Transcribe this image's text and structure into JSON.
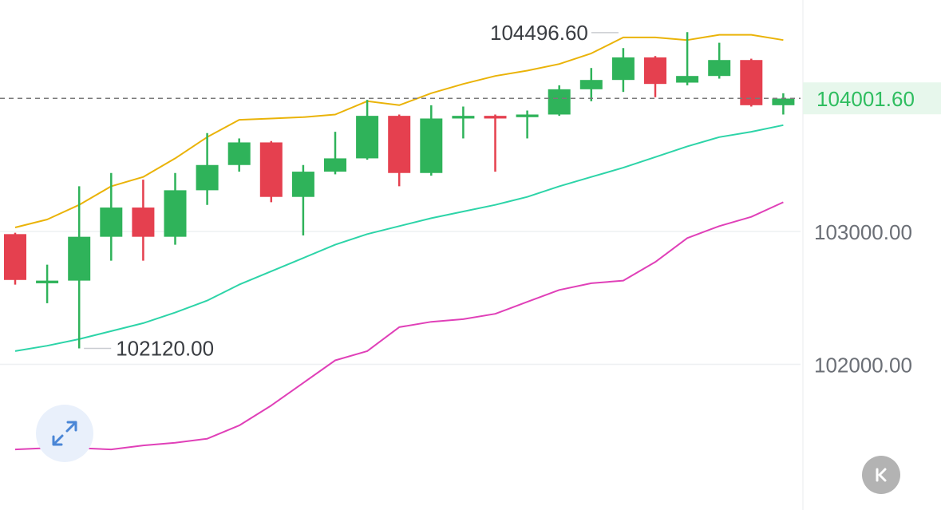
{
  "chart_data": {
    "type": "candlestick",
    "y_axis_labels": [
      "103000.00",
      "102000.00"
    ],
    "y_axis_values": [
      103000,
      102000
    ],
    "last_price": 104001.6,
    "last_price_label": "104001.60",
    "high_annotation": {
      "label": "104496.60",
      "value": 104496.6,
      "candle_index": 19
    },
    "low_annotation": {
      "label": "102120.00",
      "value": 102120.0,
      "candle_index": 2
    },
    "colors": {
      "up": "#2fb35a",
      "down": "#e5404f",
      "upper_band": "#eab308",
      "middle_band": "#2dd4a8",
      "lower_band": "#e040b8",
      "last_price_line": "#7a7a7a",
      "last_price_label_bg": "#e7f7ec"
    },
    "candles": [
      {
        "o": 102980,
        "h": 102990,
        "c": 102635,
        "l": 102600
      },
      {
        "o": 102610,
        "h": 102750,
        "c": 102630,
        "l": 102460
      },
      {
        "o": 102630,
        "h": 103340,
        "c": 102960,
        "l": 102120
      },
      {
        "o": 102960,
        "h": 103440,
        "c": 103180,
        "l": 102780
      },
      {
        "o": 103180,
        "h": 103390,
        "c": 102960,
        "l": 102780
      },
      {
        "o": 102960,
        "h": 103440,
        "c": 103310,
        "l": 102900
      },
      {
        "o": 103310,
        "h": 103740,
        "c": 103500,
        "l": 103200
      },
      {
        "o": 103500,
        "h": 103700,
        "c": 103670,
        "l": 103450
      },
      {
        "o": 103670,
        "h": 103680,
        "c": 103260,
        "l": 103220
      },
      {
        "o": 103260,
        "h": 103500,
        "c": 103450,
        "l": 102970
      },
      {
        "o": 103450,
        "h": 103750,
        "c": 103550,
        "l": 103430
      },
      {
        "o": 103550,
        "h": 103990,
        "c": 103870,
        "l": 103540
      },
      {
        "o": 103870,
        "h": 103880,
        "c": 103440,
        "l": 103340
      },
      {
        "o": 103440,
        "h": 103950,
        "c": 103850,
        "l": 103420
      },
      {
        "o": 103850,
        "h": 103940,
        "c": 103870,
        "l": 103700
      },
      {
        "o": 103870,
        "h": 103880,
        "c": 103850,
        "l": 103450
      },
      {
        "o": 103860,
        "h": 103910,
        "c": 103880,
        "l": 103700
      },
      {
        "o": 103880,
        "h": 104100,
        "c": 104070,
        "l": 103870
      },
      {
        "o": 104070,
        "h": 104230,
        "c": 104140,
        "l": 103980
      },
      {
        "o": 104140,
        "h": 104380,
        "c": 104310,
        "l": 104050
      },
      {
        "o": 104310,
        "h": 104320,
        "c": 104110,
        "l": 104010
      },
      {
        "o": 104120,
        "h": 104500,
        "c": 104170,
        "l": 104100
      },
      {
        "o": 104170,
        "h": 104420,
        "c": 104290,
        "l": 104150
      },
      {
        "o": 104290,
        "h": 104300,
        "c": 103950,
        "l": 103940
      },
      {
        "o": 103950,
        "h": 104040,
        "c": 104000,
        "l": 103880
      }
    ],
    "upper_band": [
      103030,
      103090,
      103200,
      103340,
      103410,
      103550,
      103710,
      103840,
      103850,
      103860,
      103880,
      103980,
      103950,
      104040,
      104110,
      104170,
      104210,
      104260,
      104340,
      104460,
      104460,
      104440,
      104480,
      104480,
      104440
    ],
    "middle_band": [
      102100,
      102140,
      102190,
      102250,
      102310,
      102390,
      102480,
      102600,
      102700,
      102800,
      102900,
      102980,
      103040,
      103100,
      103150,
      103200,
      103260,
      103340,
      103410,
      103480,
      103560,
      103640,
      103710,
      103750,
      103800
    ],
    "lower_band": [
      101360,
      101370,
      101370,
      101360,
      101390,
      101410,
      101440,
      101540,
      101690,
      101860,
      102030,
      102100,
      102280,
      102320,
      102340,
      102380,
      102470,
      102560,
      102610,
      102630,
      102770,
      102950,
      103040,
      103110,
      103220
    ]
  }
}
